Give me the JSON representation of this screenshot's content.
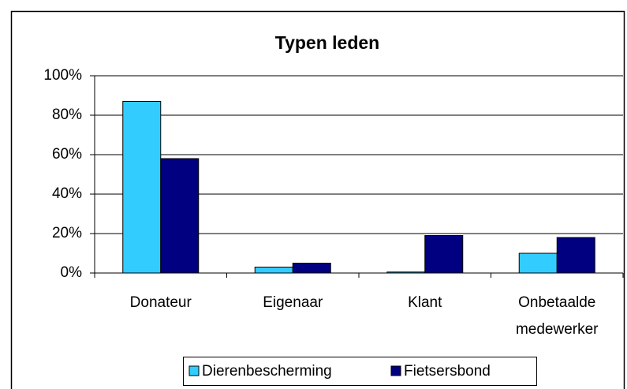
{
  "chart_data": {
    "type": "bar",
    "title": "Typen leden",
    "categories": [
      "Donateur",
      "Eigenaar",
      "Klant",
      "Onbetaalde medewerker"
    ],
    "series": [
      {
        "name": "Dierenbescherming",
        "color": "#33ccff",
        "values": [
          87,
          3,
          0.5,
          10
        ]
      },
      {
        "name": "Fietsersbond",
        "color": "#000080",
        "values": [
          58,
          5,
          19,
          18
        ]
      }
    ],
    "ylim": [
      0,
      100
    ],
    "yticks": [
      {
        "value": 0,
        "label": "0%"
      },
      {
        "value": 20,
        "label": "20%"
      },
      {
        "value": 40,
        "label": "40%"
      },
      {
        "value": 60,
        "label": "60%"
      },
      {
        "value": 80,
        "label": "80%"
      },
      {
        "value": 100,
        "label": "100%"
      }
    ],
    "grid": true,
    "legend": "bottom"
  }
}
